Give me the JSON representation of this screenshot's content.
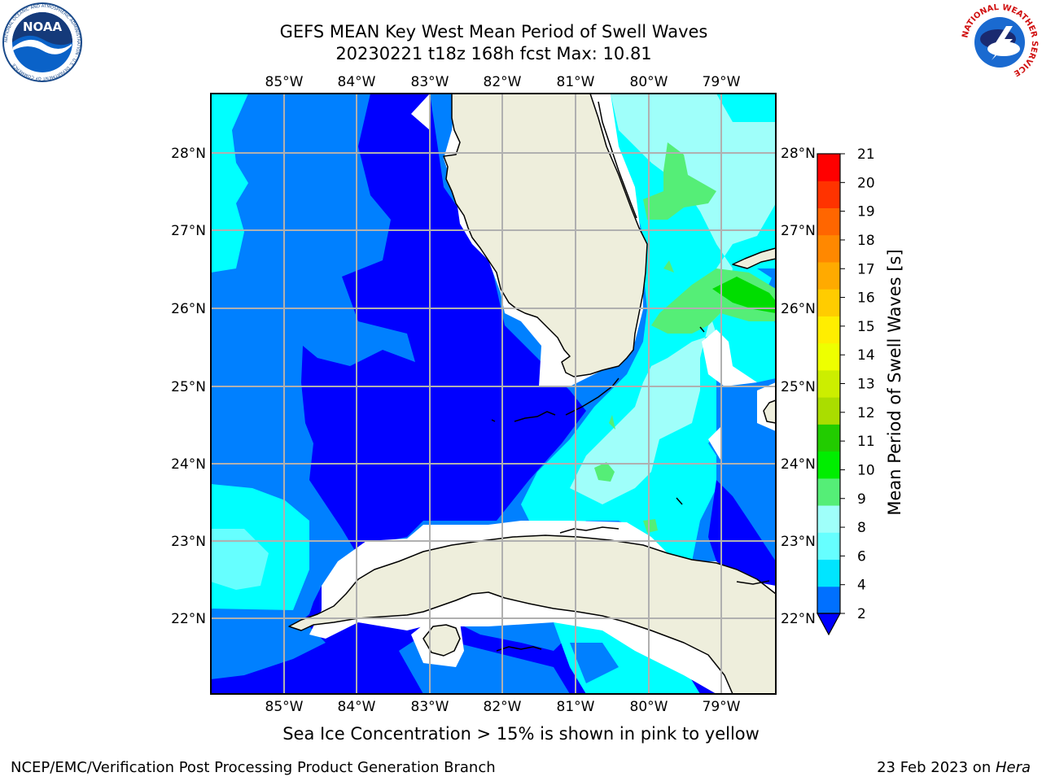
{
  "header": {
    "title_line1": "GEFS MEAN Key West Mean Period of Swell Waves",
    "title_line2": "20230221 t18z 168h fcst   Max: 10.81"
  },
  "map": {
    "lon_labels": [
      "85°W",
      "84°W",
      "83°W",
      "82°W",
      "81°W",
      "80°W",
      "79°W"
    ],
    "lat_labels": [
      "28°N",
      "27°N",
      "26°N",
      "25°N",
      "24°N",
      "23°N",
      "22°N"
    ],
    "colors": {
      "land": "#eeeedc",
      "c2": "#0000ff",
      "c4": "#0080ff",
      "c6": "#00ffff",
      "c8": "#99ffff",
      "c9": "#55ee77",
      "c10": "#00dd00",
      "gridline": "#b0b0b0"
    }
  },
  "colorbar": {
    "label": "Mean Period of Swell Waves [s]",
    "ticks": [
      "2",
      "4",
      "6",
      "8",
      "9",
      "10",
      "11",
      "12",
      "13",
      "14",
      "15",
      "16",
      "17",
      "18",
      "19",
      "20",
      "21"
    ],
    "colors": [
      "#0070ff",
      "#00e5ff",
      "#66ffff",
      "#9ffffa",
      "#55ee77",
      "#00ee00",
      "#22cc00",
      "#aadd00",
      "#ccee00",
      "#eeff00",
      "#ffee00",
      "#ffcc00",
      "#ffaa00",
      "#ff8800",
      "#ff6600",
      "#ff3300",
      "#ff0000"
    ],
    "under_color": "#0000ff"
  },
  "footer": {
    "caption": "Sea Ice Concentration > 15% is shown in pink to yellow",
    "left": "NCEP/EMC/Verification Post Processing Product Generation Branch",
    "right_prefix": "23 Feb 2023 on ",
    "right_machine": "Hera"
  },
  "logos": {
    "noaa": "NOAA",
    "noaa_ring": "NATIONAL OCEANIC AND ATMOSPHERIC ADMINISTRATION · U.S. DEPARTMENT OF COMMERCE",
    "nws_ring": "NATIONAL WEATHER SERVICE"
  }
}
